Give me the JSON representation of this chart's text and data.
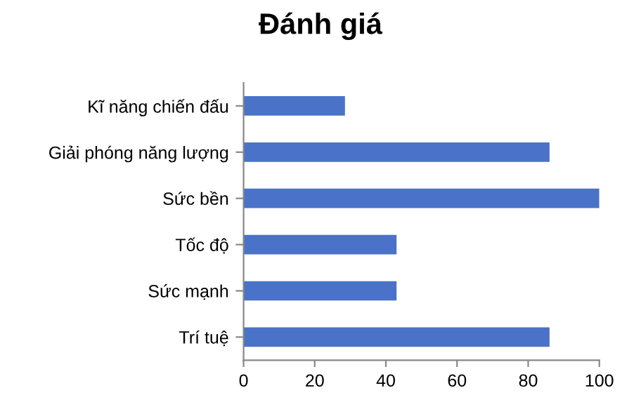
{
  "chart_data": {
    "type": "bar",
    "orientation": "horizontal",
    "title": "Đánh giá",
    "categories": [
      "Kĩ năng chiến đấu",
      "Giải phóng năng lượng",
      "Sức bền",
      "Tốc độ",
      "Sức mạnh",
      "Trí tuệ"
    ],
    "values": [
      28.5,
      86,
      100,
      43,
      43,
      86
    ],
    "color": "#4a72c8",
    "xlim": [
      0,
      100
    ],
    "xticks": [
      0,
      20,
      40,
      60,
      80,
      100
    ],
    "grid": false,
    "legend": false
  }
}
